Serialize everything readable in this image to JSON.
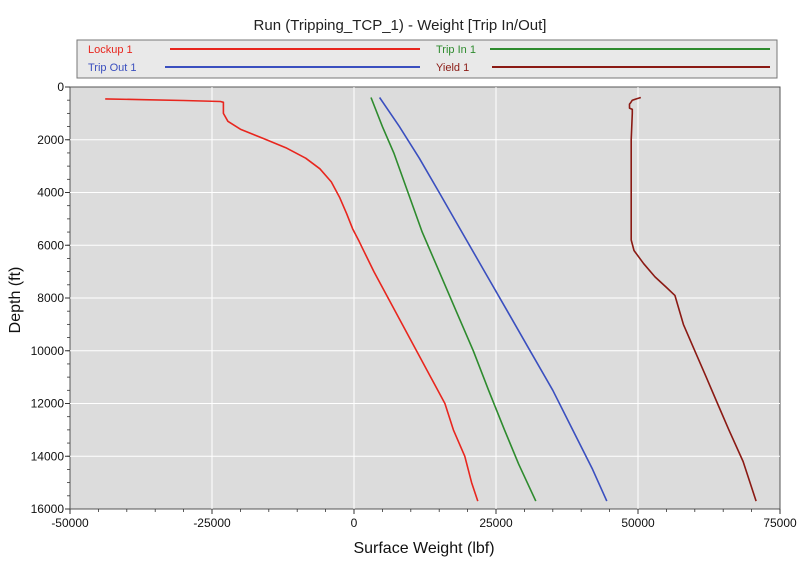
{
  "chart_data": {
    "type": "line",
    "title": "Run (Tripping_TCP_1) - Weight [Trip In/Out]",
    "xlabel": "Surface Weight (lbf)",
    "ylabel": "Depth (ft)",
    "xlim": [
      -50000,
      75000
    ],
    "ylim": [
      0,
      16000
    ],
    "y_inverted": true,
    "grid": true,
    "legend_position": "top",
    "x_ticks": [
      -50000,
      -25000,
      0,
      25000,
      50000,
      75000
    ],
    "x_tick_labels": [
      "-50000",
      "-25000",
      "0",
      "25000",
      "50000",
      "75000"
    ],
    "y_ticks": [
      0,
      2000,
      4000,
      6000,
      8000,
      10000,
      12000,
      14000,
      16000
    ],
    "y_tick_labels": [
      "0",
      "2000",
      "4000",
      "6000",
      "8000",
      "10000",
      "12000",
      "14000",
      "16000"
    ],
    "series": [
      {
        "name": "Lockup 1",
        "color": "#e8261e",
        "points": [
          [
            -43800,
            450
          ],
          [
            -37000,
            480
          ],
          [
            -30000,
            510
          ],
          [
            -23500,
            550
          ],
          [
            -23000,
            580
          ],
          [
            -23000,
            1000
          ],
          [
            -22200,
            1300
          ],
          [
            -20000,
            1600
          ],
          [
            -16000,
            1950
          ],
          [
            -12000,
            2300
          ],
          [
            -8500,
            2700
          ],
          [
            -6000,
            3100
          ],
          [
            -4000,
            3600
          ],
          [
            -2500,
            4200
          ],
          [
            -1300,
            4800
          ],
          [
            -200,
            5400
          ],
          [
            900,
            5850
          ],
          [
            1800,
            6250
          ],
          [
            3500,
            7000
          ],
          [
            6000,
            8000
          ],
          [
            8500,
            9000
          ],
          [
            11000,
            10000
          ],
          [
            13500,
            11000
          ],
          [
            16000,
            12000
          ],
          [
            17500,
            13000
          ],
          [
            19500,
            14000
          ],
          [
            20700,
            15000
          ],
          [
            21800,
            15700
          ]
        ]
      },
      {
        "name": "Trip In 1",
        "color": "#2e8b2e",
        "points": [
          [
            3000,
            400
          ],
          [
            5000,
            1500
          ],
          [
            7000,
            2500
          ],
          [
            9500,
            4000
          ],
          [
            12000,
            5500
          ],
          [
            15000,
            7000
          ],
          [
            18000,
            8500
          ],
          [
            21000,
            10000
          ],
          [
            23700,
            11500
          ],
          [
            26500,
            13000
          ],
          [
            29000,
            14300
          ],
          [
            32000,
            15700
          ]
        ]
      },
      {
        "name": "Trip Out 1",
        "color": "#3a4fbf",
        "points": [
          [
            4500,
            400
          ],
          [
            8000,
            1500
          ],
          [
            11500,
            2700
          ],
          [
            15000,
            4000
          ],
          [
            19000,
            5500
          ],
          [
            23000,
            7000
          ],
          [
            27000,
            8500
          ],
          [
            31000,
            10000
          ],
          [
            35000,
            11500
          ],
          [
            38500,
            13000
          ],
          [
            42000,
            14500
          ],
          [
            44500,
            15700
          ]
        ]
      },
      {
        "name": "Yield 1",
        "color": "#8b1a14",
        "points": [
          [
            50500,
            400
          ],
          [
            49000,
            500
          ],
          [
            48700,
            600
          ],
          [
            48500,
            650
          ],
          [
            48500,
            700
          ],
          [
            48500,
            800
          ],
          [
            49000,
            850
          ],
          [
            49000,
            1000
          ],
          [
            48800,
            2000
          ],
          [
            48800,
            3000
          ],
          [
            48800,
            4000
          ],
          [
            48800,
            5000
          ],
          [
            48800,
            5800
          ],
          [
            49300,
            6200
          ],
          [
            51000,
            6700
          ],
          [
            53000,
            7200
          ],
          [
            55000,
            7600
          ],
          [
            56500,
            7900
          ],
          [
            58000,
            9000
          ],
          [
            60000,
            10000
          ],
          [
            62000,
            11000
          ],
          [
            64000,
            12000
          ],
          [
            66000,
            13000
          ],
          [
            68500,
            14200
          ],
          [
            70800,
            15700
          ]
        ]
      }
    ]
  }
}
